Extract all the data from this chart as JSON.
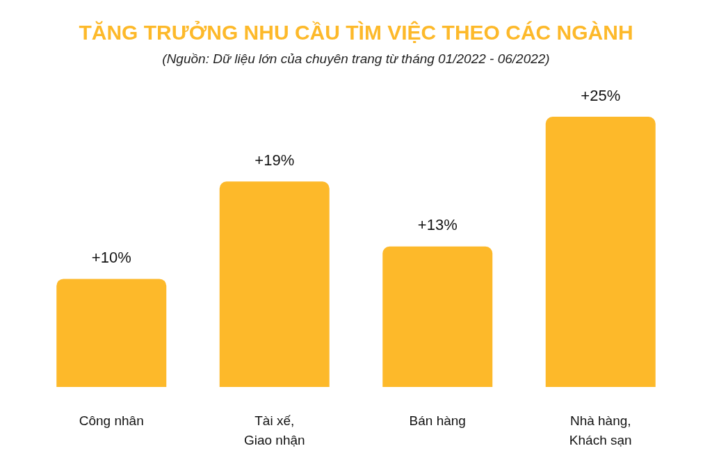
{
  "chart_data": {
    "type": "bar",
    "title": "TĂNG TRƯỞNG NHU CẦU TÌM VIỆC THEO CÁC NGÀNH",
    "subtitle": "(Nguồn: Dữ liệu lớn của chuyên trang từ tháng 01/2022 - 06/2022)",
    "categories": [
      "Công nhân",
      "Tài xế,\nGiao nhận",
      "Bán hàng",
      "Nhà hàng,\nKhách sạn"
    ],
    "values": [
      10,
      19,
      13,
      25
    ],
    "value_labels": [
      "+10%",
      "+19%",
      "+13%",
      "+25%"
    ],
    "color": "#fdb92a"
  }
}
